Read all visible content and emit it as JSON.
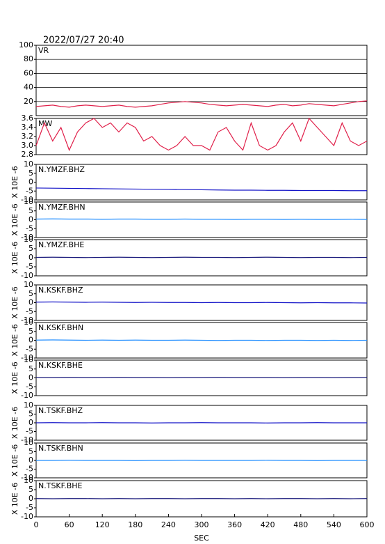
{
  "chart_data": [
    {
      "type": "line",
      "title": "2022/07/27 20:40",
      "label": "VR",
      "xlim": [
        0,
        600
      ],
      "ylim": [
        0,
        100
      ],
      "yticks": [
        20,
        40,
        60,
        80,
        100
      ],
      "grid": true,
      "x": [
        0,
        15,
        30,
        45,
        60,
        75,
        90,
        105,
        120,
        135,
        150,
        165,
        180,
        195,
        210,
        225,
        240,
        255,
        270,
        285,
        300,
        315,
        330,
        345,
        360,
        375,
        390,
        405,
        420,
        435,
        450,
        465,
        480,
        495,
        510,
        525,
        540,
        555,
        570,
        585,
        600
      ],
      "series": [
        {
          "color": "#e0204a",
          "values": [
            13,
            14,
            15,
            13,
            12,
            14,
            15,
            14,
            13,
            14,
            15,
            13,
            12,
            13,
            14,
            16,
            18,
            19,
            20,
            19,
            18,
            16,
            15,
            14,
            15,
            16,
            15,
            14,
            13,
            15,
            16,
            14,
            15,
            17,
            16,
            15,
            14,
            16,
            18,
            20,
            21
          ]
        }
      ]
    },
    {
      "type": "line",
      "label": "MW",
      "xlim": [
        0,
        600
      ],
      "ylim": [
        2.8,
        3.6
      ],
      "yticks": [
        2.8,
        {
          "value": 3,
          "label": "3.0"
        },
        3.2,
        3.4,
        3.6
      ],
      "grid": false,
      "x": [
        0,
        15,
        30,
        45,
        60,
        75,
        90,
        105,
        120,
        135,
        150,
        165,
        180,
        195,
        210,
        225,
        240,
        255,
        270,
        285,
        300,
        315,
        330,
        345,
        360,
        375,
        390,
        405,
        420,
        435,
        450,
        465,
        480,
        495,
        510,
        525,
        540,
        555,
        570,
        585,
        600
      ],
      "series": [
        {
          "color": "#e0204a",
          "values": [
            3.0,
            3.5,
            3.1,
            3.4,
            2.9,
            3.3,
            3.5,
            3.6,
            3.4,
            3.5,
            3.3,
            3.5,
            3.4,
            3.1,
            3.2,
            3.0,
            2.9,
            3.0,
            3.2,
            3.0,
            3.0,
            2.9,
            3.3,
            3.4,
            3.1,
            2.9,
            3.5,
            3.0,
            2.9,
            3.0,
            3.3,
            3.5,
            3.1,
            3.6,
            3.4,
            3.2,
            3.0,
            3.5,
            3.1,
            3.0,
            3.1
          ]
        }
      ]
    },
    {
      "type": "line",
      "label": "N.YMZF.BHZ",
      "ylabel": "X 10E -6",
      "xlim": [
        0,
        600
      ],
      "ylim": [
        -10,
        10
      ],
      "yticks": [
        -10,
        -5,
        0,
        5,
        10
      ],
      "x": [
        0,
        30,
        60,
        90,
        120,
        150,
        180,
        210,
        240,
        270,
        300,
        330,
        360,
        390,
        420,
        450,
        480,
        510,
        540,
        570,
        600
      ],
      "series": [
        {
          "color": "#1414c8",
          "values": [
            -3.3,
            -3.4,
            -3.5,
            -3.6,
            -3.7,
            -3.8,
            -3.9,
            -4.0,
            -4.1,
            -4.2,
            -4.3,
            -4.4,
            -4.5,
            -4.5,
            -4.6,
            -4.6,
            -4.7,
            -4.7,
            -4.7,
            -4.8,
            -4.8
          ]
        }
      ]
    },
    {
      "type": "line",
      "label": "N.YMZF.BHN",
      "ylabel": "X 10E -6",
      "xlim": [
        0,
        600
      ],
      "ylim": [
        -10,
        10
      ],
      "yticks": [
        -10,
        -5,
        0,
        5,
        10
      ],
      "x": [
        0,
        30,
        60,
        90,
        120,
        150,
        180,
        210,
        240,
        270,
        300,
        330,
        360,
        390,
        420,
        450,
        480,
        510,
        540,
        570,
        600
      ],
      "series": [
        {
          "color": "#1e8cff",
          "values": [
            0.4,
            0.5,
            0.4,
            0.4,
            0.3,
            0.4,
            0.4,
            0.3,
            0.3,
            0.4,
            0.3,
            0.3,
            0.2,
            0.3,
            0.3,
            0.2,
            0.3,
            0.2,
            0.2,
            0.3,
            0.2
          ]
        }
      ]
    },
    {
      "type": "line",
      "label": "N.YMZF.BHE",
      "ylabel": "X 10E -6",
      "xlim": [
        0,
        600
      ],
      "ylim": [
        -10,
        10
      ],
      "yticks": [
        -10,
        -5,
        0,
        5,
        10
      ],
      "x": [
        0,
        30,
        60,
        90,
        120,
        150,
        180,
        210,
        240,
        270,
        300,
        330,
        360,
        390,
        420,
        450,
        480,
        510,
        540,
        570,
        600
      ],
      "series": [
        {
          "color": "#141478",
          "values": [
            0.2,
            0.3,
            0.2,
            0.1,
            0.2,
            0.3,
            0.2,
            0.1,
            0.2,
            0.3,
            0.2,
            0.2,
            0.1,
            0.2,
            0.3,
            0.2,
            0.1,
            0.2,
            0.2,
            0.1,
            0.2
          ]
        }
      ]
    },
    {
      "type": "line",
      "label": "N.KSKF.BHZ",
      "ylabel": "X 10E -6",
      "xlim": [
        0,
        600
      ],
      "ylim": [
        -10,
        10
      ],
      "yticks": [
        -10,
        -5,
        0,
        5,
        10
      ],
      "x": [
        0,
        30,
        60,
        90,
        120,
        150,
        180,
        210,
        240,
        270,
        300,
        330,
        360,
        390,
        420,
        450,
        480,
        510,
        540,
        570,
        600
      ],
      "series": [
        {
          "color": "#1414c8",
          "values": [
            0.3,
            0.4,
            0.3,
            0.2,
            0.3,
            0.2,
            0.1,
            0.2,
            0.1,
            0.1,
            0.0,
            0.1,
            0.0,
            0.0,
            0.1,
            0.0,
            -0.1,
            0.0,
            -0.1,
            -0.1,
            -0.2
          ]
        }
      ]
    },
    {
      "type": "line",
      "label": "N.KSKF.BHN",
      "ylabel": "X 10E -6",
      "xlim": [
        0,
        600
      ],
      "ylim": [
        -10,
        10
      ],
      "yticks": [
        -10,
        -5,
        0,
        5,
        10
      ],
      "x": [
        0,
        30,
        60,
        90,
        120,
        150,
        180,
        210,
        240,
        270,
        300,
        330,
        360,
        390,
        420,
        450,
        480,
        510,
        540,
        570,
        600
      ],
      "series": [
        {
          "color": "#1e8cff",
          "values": [
            0.1,
            0.2,
            0.1,
            0.0,
            0.1,
            0.0,
            0.1,
            0.0,
            0.0,
            0.1,
            0.0,
            -0.1,
            0.0,
            0.0,
            -0.1,
            0.0,
            0.0,
            -0.1,
            0.0,
            -0.1,
            0.0
          ]
        }
      ]
    },
    {
      "type": "line",
      "label": "N.KSKF.BHE",
      "ylabel": "X 10E -6",
      "xlim": [
        0,
        600
      ],
      "ylim": [
        -10,
        10
      ],
      "yticks": [
        -10,
        -5,
        0,
        5,
        10
      ],
      "x": [
        0,
        30,
        60,
        90,
        120,
        150,
        180,
        210,
        240,
        270,
        300,
        330,
        360,
        390,
        420,
        450,
        480,
        510,
        540,
        570,
        600
      ],
      "series": [
        {
          "color": "#141478",
          "values": [
            0.2,
            0.2,
            0.3,
            0.2,
            0.2,
            0.3,
            0.2,
            0.2,
            0.1,
            0.2,
            0.2,
            0.3,
            0.2,
            0.2,
            0.2,
            0.1,
            0.2,
            0.2,
            0.1,
            0.2,
            0.2
          ]
        }
      ]
    },
    {
      "type": "line",
      "label": "N.TSKF.BHZ",
      "ylabel": "X 10E -6",
      "xlim": [
        0,
        600
      ],
      "ylim": [
        -10,
        10
      ],
      "yticks": [
        -10,
        -5,
        0,
        5,
        10
      ],
      "x": [
        0,
        30,
        60,
        90,
        120,
        150,
        180,
        210,
        240,
        270,
        300,
        330,
        360,
        390,
        420,
        450,
        480,
        510,
        540,
        570,
        600
      ],
      "series": [
        {
          "color": "#1414c8",
          "values": [
            0.0,
            0.1,
            0.0,
            0.0,
            0.1,
            0.0,
            0.0,
            -0.1,
            0.0,
            0.0,
            0.1,
            0.0,
            0.0,
            0.0,
            -0.1,
            0.0,
            0.0,
            0.1,
            0.0,
            0.0,
            0.0
          ]
        }
      ]
    },
    {
      "type": "line",
      "label": "N.TSKF.BHN",
      "ylabel": "X 10E -6",
      "xlim": [
        0,
        600
      ],
      "ylim": [
        -10,
        10
      ],
      "yticks": [
        -10,
        -5,
        0,
        5,
        10
      ],
      "x": [
        0,
        30,
        60,
        90,
        120,
        150,
        180,
        210,
        240,
        270,
        300,
        330,
        360,
        390,
        420,
        450,
        480,
        510,
        540,
        570,
        600
      ],
      "series": [
        {
          "color": "#1e8cff",
          "values": [
            0.0,
            0.0,
            0.1,
            0.0,
            0.0,
            0.0,
            -0.1,
            0.0,
            0.0,
            0.1,
            0.0,
            0.0,
            0.0,
            0.0,
            0.1,
            0.0,
            0.0,
            -0.1,
            0.0,
            0.0,
            0.0
          ]
        }
      ]
    },
    {
      "type": "line",
      "label": "N.TSKF.BHE",
      "ylabel": "X 10E -6",
      "xlabel": "SEC",
      "xlim": [
        0,
        600
      ],
      "ylim": [
        -10,
        10
      ],
      "yticks": [
        -10,
        -5,
        0,
        5,
        10
      ],
      "xticks": [
        0,
        60,
        120,
        180,
        240,
        300,
        360,
        420,
        480,
        540,
        600
      ],
      "x": [
        0,
        30,
        60,
        90,
        120,
        150,
        180,
        210,
        240,
        270,
        300,
        330,
        360,
        390,
        420,
        450,
        480,
        510,
        540,
        570,
        600
      ],
      "series": [
        {
          "color": "#141478",
          "values": [
            0.1,
            0.0,
            0.1,
            0.1,
            0.0,
            0.1,
            0.0,
            0.1,
            0.1,
            0.0,
            0.1,
            0.1,
            0.0,
            0.1,
            0.0,
            0.1,
            0.1,
            0.0,
            0.1,
            0.0,
            0.1
          ]
        }
      ]
    }
  ]
}
